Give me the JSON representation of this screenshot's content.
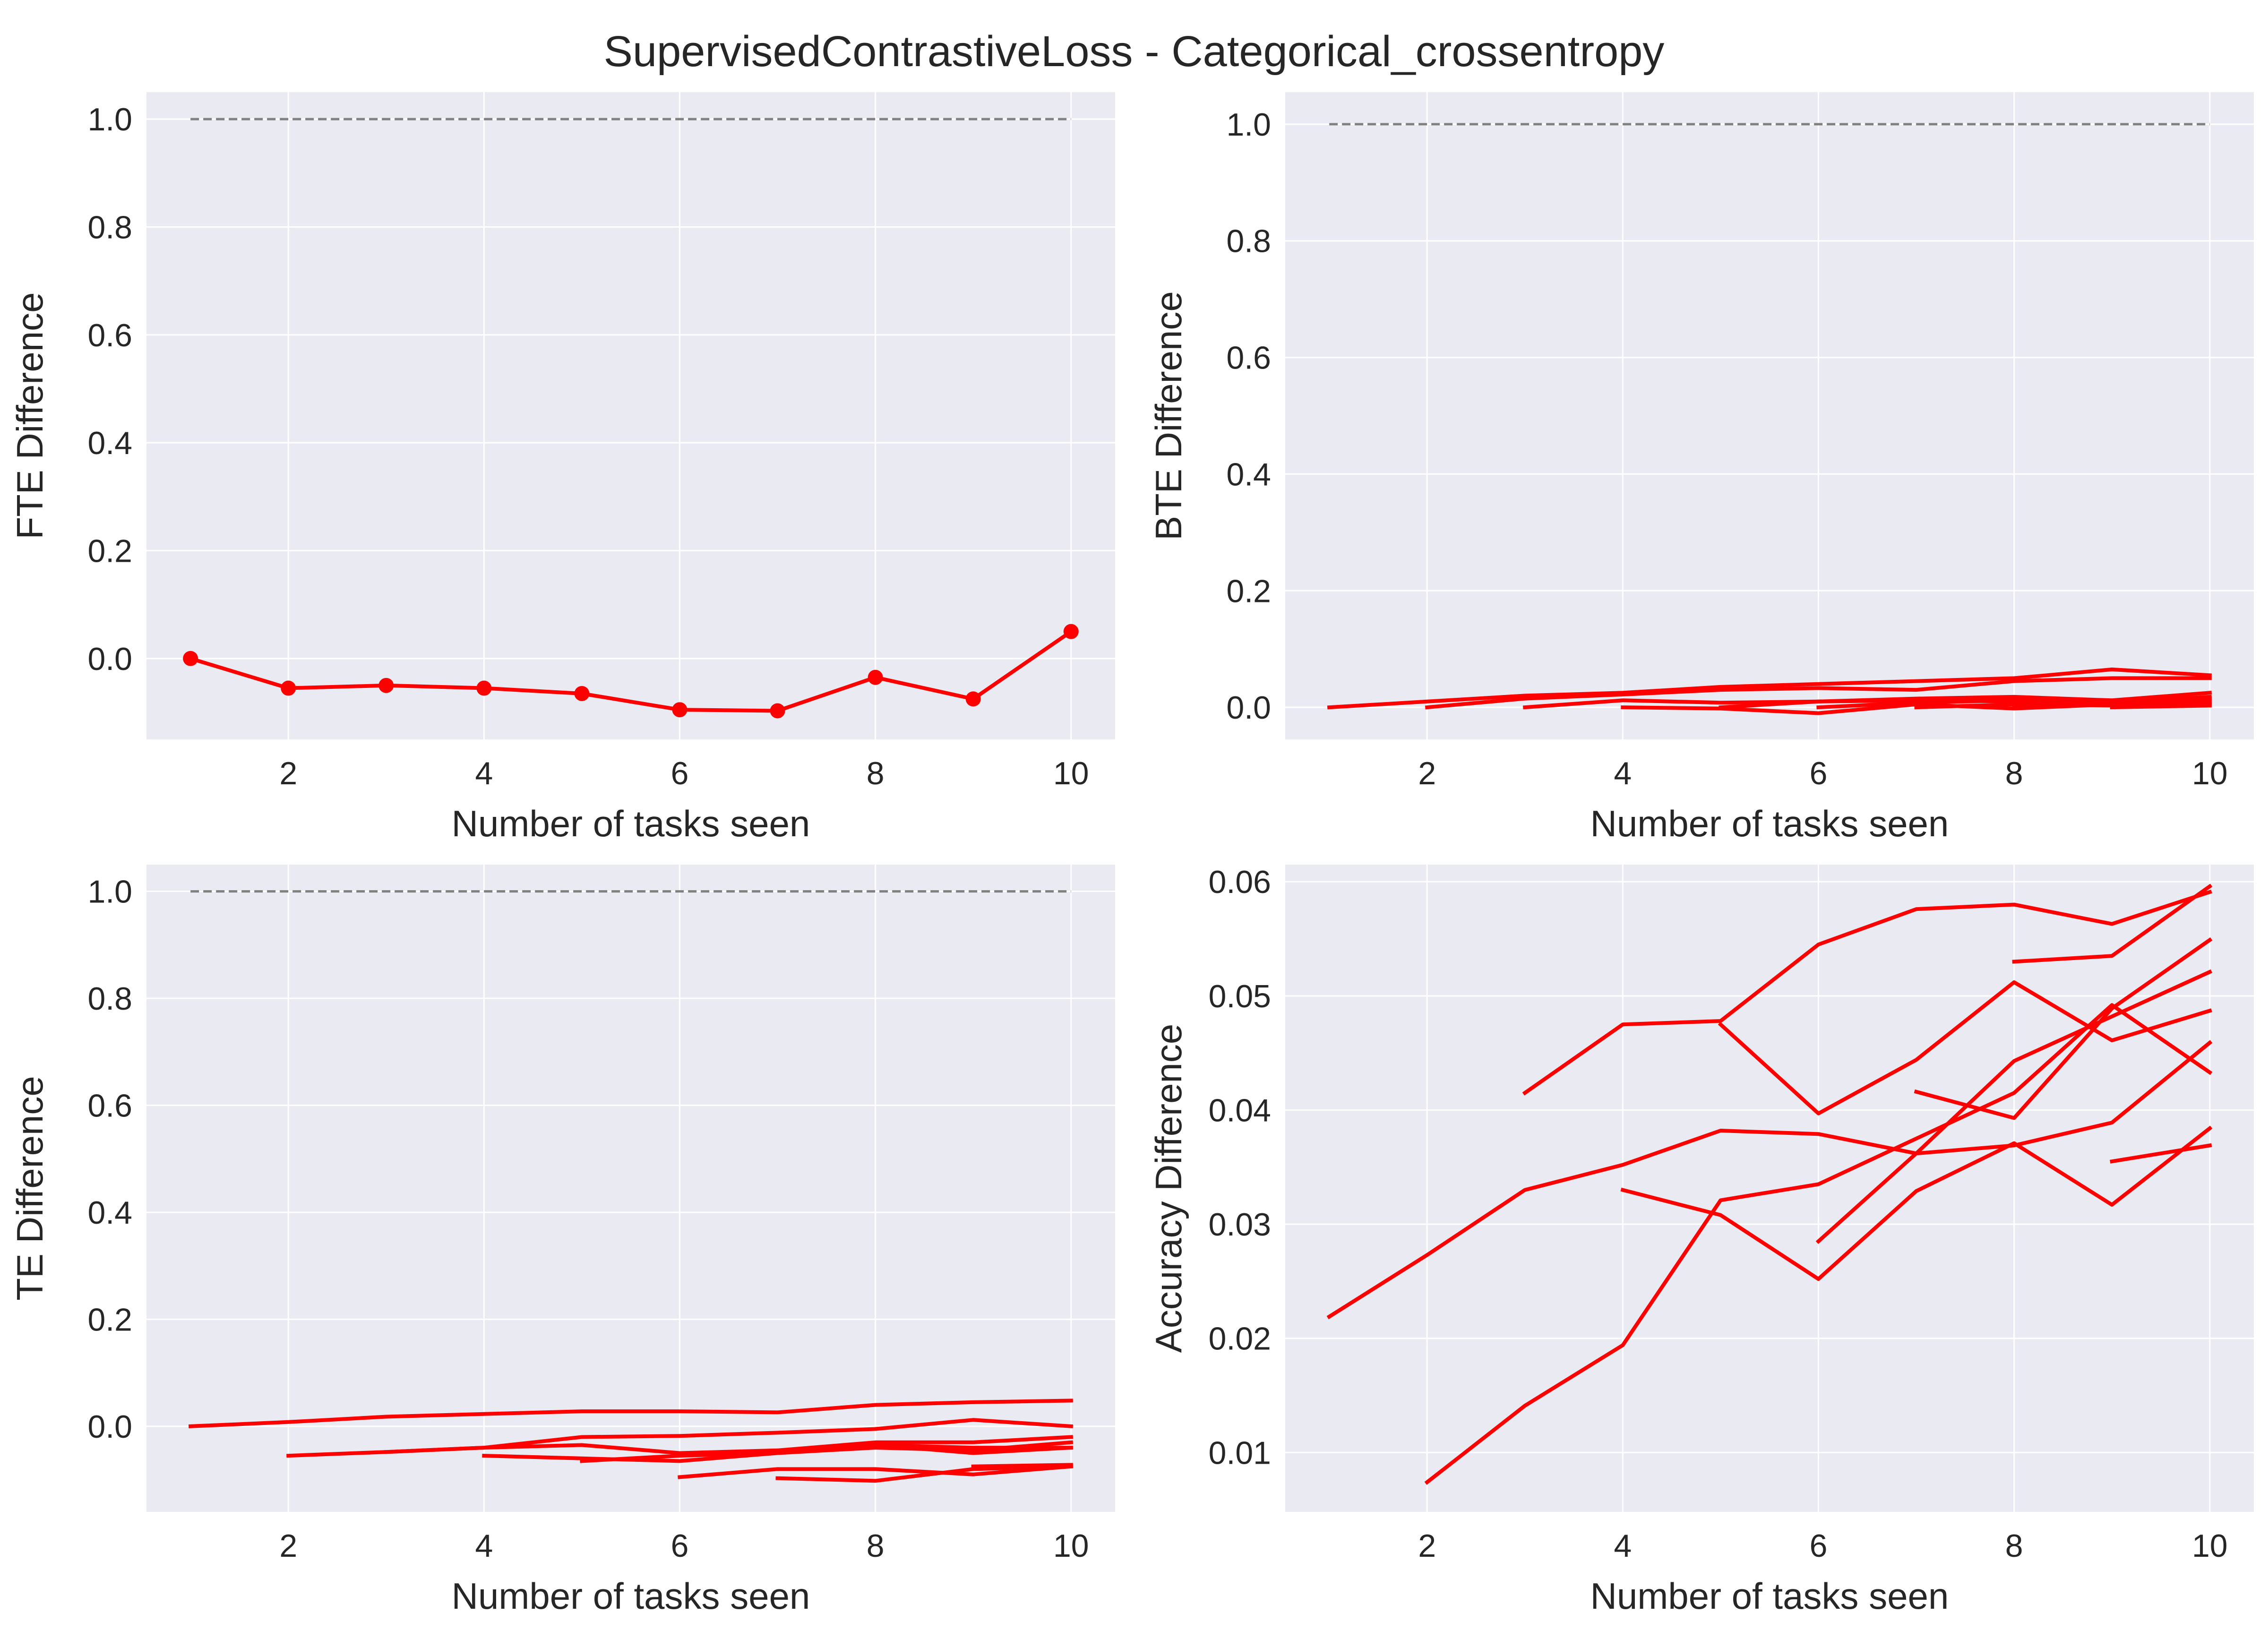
{
  "figure": {
    "suptitle": "SupervisedContrastiveLoss - Categorical_crossentropy",
    "background": "#ffffff",
    "axes_facecolor": "#eaeaf2",
    "grid_color": "#ffffff",
    "line_color": "#ff0000",
    "reference_color": "#808080"
  },
  "chart_data": [
    {
      "type": "line",
      "xlabel": "Number of tasks seen",
      "ylabel": "FTE Difference",
      "xlim": [
        0.55,
        10.45
      ],
      "ylim": [
        -0.15,
        1.05
      ],
      "xticks": [
        2,
        4,
        6,
        8,
        10
      ],
      "yticks": [
        0.0,
        0.2,
        0.4,
        0.6,
        0.8,
        1.0
      ],
      "ytick_format": 1,
      "markers": true,
      "reference_line": {
        "x": [
          1,
          10
        ],
        "y": 1.0,
        "style": "dashed"
      },
      "series": [
        {
          "x": [
            1,
            2,
            3,
            4,
            5,
            6,
            7,
            8,
            9,
            10
          ],
          "y": [
            0.0,
            -0.055,
            -0.05,
            -0.055,
            -0.065,
            -0.095,
            -0.097,
            -0.035,
            -0.075,
            0.05
          ]
        }
      ]
    },
    {
      "type": "line",
      "xlabel": "Number of tasks seen",
      "ylabel": "BTE Difference",
      "xlim": [
        0.55,
        10.45
      ],
      "ylim": [
        -0.055,
        1.055
      ],
      "xticks": [
        2,
        4,
        6,
        8,
        10
      ],
      "yticks": [
        0.0,
        0.2,
        0.4,
        0.6,
        0.8,
        1.0
      ],
      "ytick_format": 1,
      "markers": false,
      "reference_line": {
        "x": [
          1,
          10
        ],
        "y": 1.0,
        "style": "dashed"
      },
      "series": [
        {
          "x": [
            1,
            2,
            3,
            4,
            5,
            6,
            7,
            8,
            9,
            10
          ],
          "y": [
            0.0,
            0.01,
            0.02,
            0.025,
            0.035,
            0.04,
            0.045,
            0.05,
            0.065,
            0.055
          ]
        },
        {
          "x": [
            2,
            3,
            4,
            5,
            6,
            7,
            8,
            9,
            10
          ],
          "y": [
            0.0,
            0.015,
            0.022,
            0.03,
            0.033,
            0.03,
            0.045,
            0.05,
            0.05
          ]
        },
        {
          "x": [
            3,
            4,
            5,
            6,
            7,
            8,
            9,
            10
          ],
          "y": [
            0.0,
            0.012,
            0.008,
            0.01,
            0.015,
            0.018,
            0.012,
            0.025
          ]
        },
        {
          "x": [
            4,
            5,
            6,
            7,
            8,
            9,
            10
          ],
          "y": [
            0.0,
            -0.002,
            -0.01,
            0.005,
            -0.002,
            0.005,
            0.015
          ]
        },
        {
          "x": [
            5,
            6,
            7,
            8,
            9,
            10
          ],
          "y": [
            0.0,
            0.01,
            0.012,
            0.01,
            0.008,
            0.018
          ]
        },
        {
          "x": [
            6,
            7,
            8,
            9,
            10
          ],
          "y": [
            0.0,
            0.008,
            0.012,
            0.005,
            0.01
          ]
        },
        {
          "x": [
            7,
            8,
            9,
            10
          ],
          "y": [
            0.0,
            0.005,
            0.003,
            0.008
          ]
        },
        {
          "x": [
            8,
            9,
            10
          ],
          "y": [
            0.0,
            0.01,
            0.005
          ]
        },
        {
          "x": [
            9,
            10
          ],
          "y": [
            0.0,
            0.003
          ]
        }
      ]
    },
    {
      "type": "line",
      "xlabel": "Number of tasks seen",
      "ylabel": "TE Difference",
      "xlim": [
        0.55,
        10.45
      ],
      "ylim": [
        -0.16,
        1.05
      ],
      "xticks": [
        2,
        4,
        6,
        8,
        10
      ],
      "yticks": [
        0.0,
        0.2,
        0.4,
        0.6,
        0.8,
        1.0
      ],
      "ytick_format": 1,
      "markers": false,
      "reference_line": {
        "x": [
          1,
          10
        ],
        "y": 1.0,
        "style": "dashed"
      },
      "series": [
        {
          "x": [
            1,
            2,
            3,
            4,
            5,
            6,
            7,
            8,
            9,
            10
          ],
          "y": [
            0.0,
            0.008,
            0.018,
            0.023,
            0.028,
            0.028,
            0.026,
            0.04,
            0.045,
            0.048
          ]
        },
        {
          "x": [
            2,
            3,
            4,
            5,
            6,
            7,
            8,
            9,
            10
          ],
          "y": [
            -0.055,
            -0.048,
            -0.04,
            -0.02,
            -0.018,
            -0.012,
            -0.005,
            0.012,
            0.0
          ]
        },
        {
          "x": [
            3,
            4,
            5,
            6,
            7,
            8,
            9,
            10
          ],
          "y": [
            -0.048,
            -0.04,
            -0.035,
            -0.05,
            -0.045,
            -0.03,
            -0.03,
            -0.02
          ]
        },
        {
          "x": [
            4,
            5,
            6,
            7,
            8,
            9,
            10
          ],
          "y": [
            -0.055,
            -0.06,
            -0.065,
            -0.05,
            -0.04,
            -0.045,
            -0.03
          ]
        },
        {
          "x": [
            5,
            6,
            7,
            8,
            9,
            10
          ],
          "y": [
            -0.065,
            -0.055,
            -0.05,
            -0.035,
            -0.04,
            -0.04
          ]
        },
        {
          "x": [
            6,
            7,
            8,
            9,
            10
          ],
          "y": [
            -0.095,
            -0.08,
            -0.08,
            -0.09,
            -0.075
          ]
        },
        {
          "x": [
            7,
            8,
            9,
            10
          ],
          "y": [
            -0.097,
            -0.102,
            -0.08,
            -0.075
          ]
        },
        {
          "x": [
            8,
            9,
            10
          ],
          "y": [
            -0.035,
            -0.05,
            -0.04
          ]
        },
        {
          "x": [
            9,
            10
          ],
          "y": [
            -0.075,
            -0.072
          ]
        }
      ]
    },
    {
      "type": "line",
      "xlabel": "Number of tasks seen",
      "ylabel": "Accuracy Difference",
      "xlim": [
        0.55,
        10.45
      ],
      "ylim": [
        0.0048,
        0.0615
      ],
      "xticks": [
        2,
        4,
        6,
        8,
        10
      ],
      "yticks": [
        0.01,
        0.02,
        0.03,
        0.04,
        0.05,
        0.06
      ],
      "ytick_format": 2,
      "markers": false,
      "reference_line": null,
      "series": [
        {
          "x": [
            1,
            2,
            3,
            4,
            5,
            6,
            7,
            8,
            9,
            10
          ],
          "y": [
            0.0219,
            0.0273,
            0.033,
            0.0352,
            0.0382,
            0.0379,
            0.0362,
            0.0369,
            0.0389,
            0.0459
          ]
        },
        {
          "x": [
            2,
            3,
            4,
            5,
            6,
            7,
            8,
            9,
            10
          ],
          "y": [
            0.0074,
            0.0141,
            0.0194,
            0.0321,
            0.0335,
            0.0375,
            0.0415,
            0.0492,
            0.0433
          ]
        },
        {
          "x": [
            3,
            4,
            5,
            6,
            7,
            8,
            9,
            10
          ],
          "y": [
            0.0415,
            0.0475,
            0.0478,
            0.0545,
            0.0576,
            0.058,
            0.0563,
            0.0591
          ]
        },
        {
          "x": [
            4,
            5,
            6,
            7,
            8,
            9,
            10
          ],
          "y": [
            0.033,
            0.0308,
            0.0252,
            0.0329,
            0.0371,
            0.0317,
            0.0384
          ]
        },
        {
          "x": [
            5,
            6,
            7,
            8,
            9,
            10
          ],
          "y": [
            0.0475,
            0.0397,
            0.0444,
            0.0512,
            0.0461,
            0.0487
          ]
        },
        {
          "x": [
            6,
            7,
            8,
            9,
            10
          ],
          "y": [
            0.0285,
            0.0362,
            0.0443,
            0.0482,
            0.0521
          ]
        },
        {
          "x": [
            7,
            8,
            9,
            10
          ],
          "y": [
            0.0416,
            0.0393,
            0.0489,
            0.0549
          ]
        },
        {
          "x": [
            8,
            9,
            10
          ],
          "y": [
            0.053,
            0.0535,
            0.0596
          ]
        },
        {
          "x": [
            9,
            10
          ],
          "y": [
            0.0355,
            0.0369
          ]
        }
      ]
    }
  ]
}
